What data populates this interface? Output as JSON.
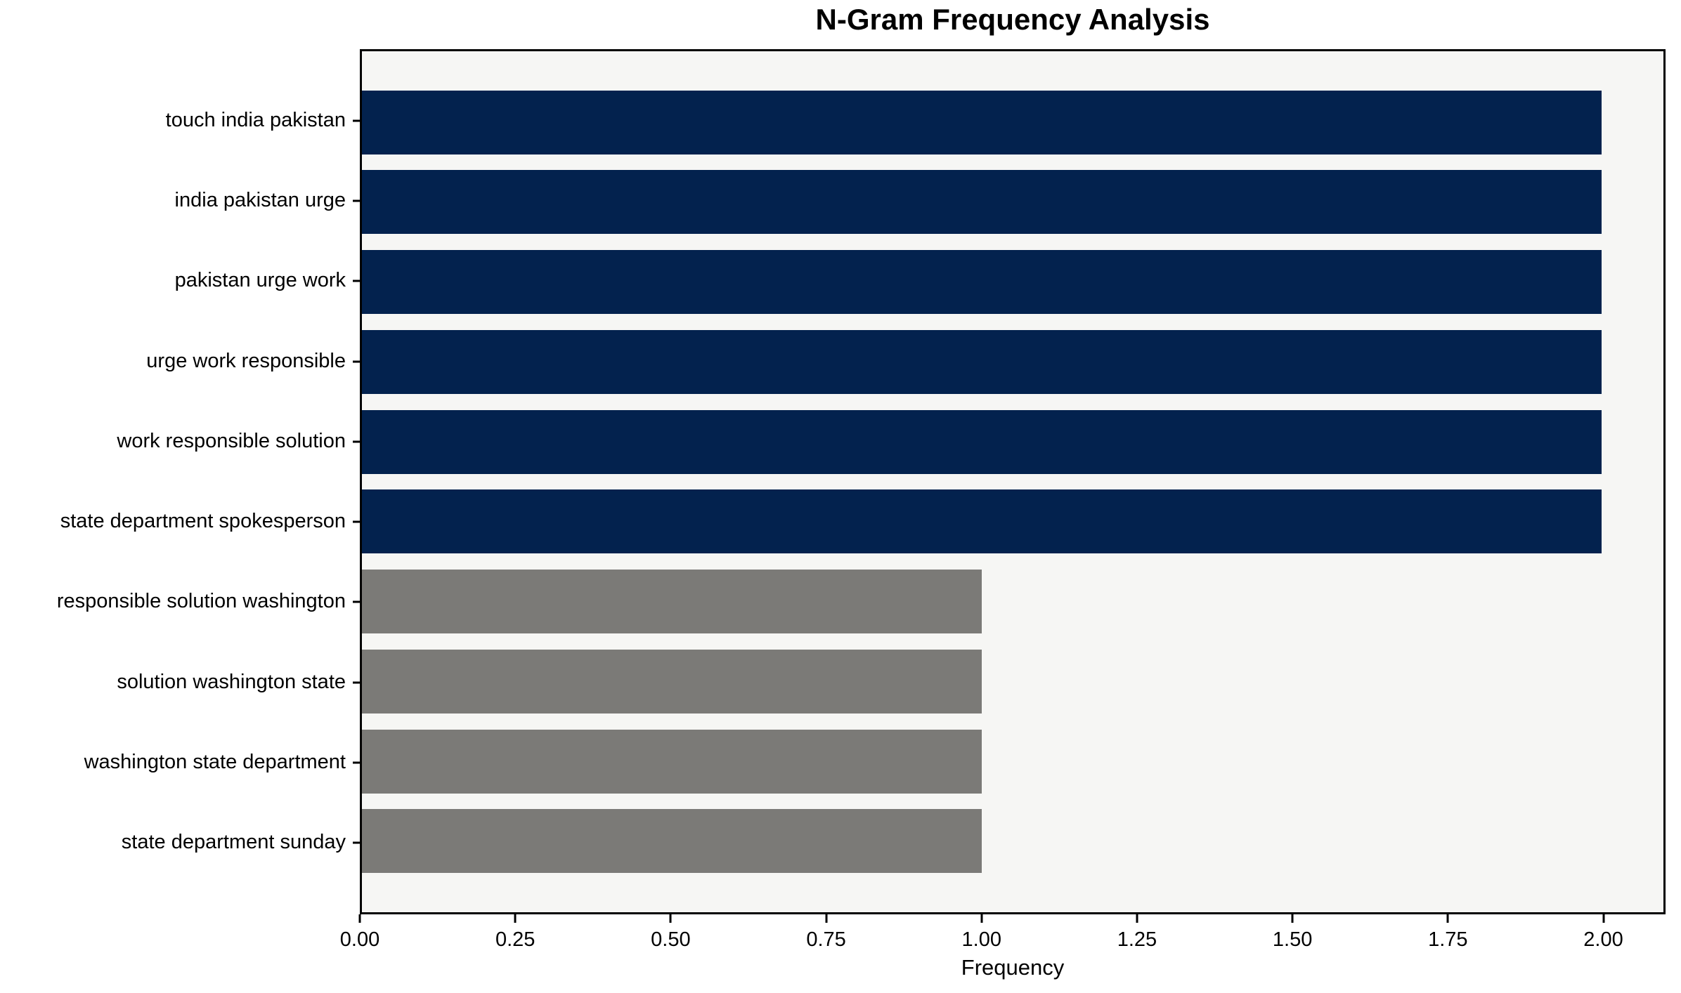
{
  "chart_data": {
    "type": "bar",
    "orientation": "horizontal",
    "title": "N-Gram Frequency Analysis",
    "xlabel": "Frequency",
    "ylabel": "",
    "categories": [
      "touch india pakistan",
      "india pakistan urge",
      "pakistan urge work",
      "urge work responsible",
      "work responsible solution",
      "state department spokesperson",
      "responsible solution washington",
      "solution washington state",
      "washington state department",
      "state department sunday"
    ],
    "values": [
      2,
      2,
      2,
      2,
      2,
      2,
      1,
      1,
      1,
      1
    ],
    "bar_colors": [
      "#03224e",
      "#03224e",
      "#03224e",
      "#03224e",
      "#03224e",
      "#03224e",
      "#7b7a77",
      "#7b7a77",
      "#7b7a77",
      "#7b7a77"
    ],
    "x_ticks": [
      0,
      0.25,
      0.5,
      0.75,
      1,
      1.25,
      1.5,
      1.75,
      2
    ],
    "x_tick_labels": [
      "0.00",
      "0.25",
      "0.50",
      "0.75",
      "1.00",
      "1.25",
      "1.50",
      "1.75",
      "2.00"
    ],
    "xlim": [
      0,
      2.1
    ],
    "grid": false,
    "legend": null,
    "colors": {
      "high_frequency_bar": "#03224e",
      "low_frequency_bar": "#7b7a77",
      "plot_background": "#f6f6f4",
      "figure_background": "#ffffff",
      "axis_and_text": "#000000"
    }
  }
}
